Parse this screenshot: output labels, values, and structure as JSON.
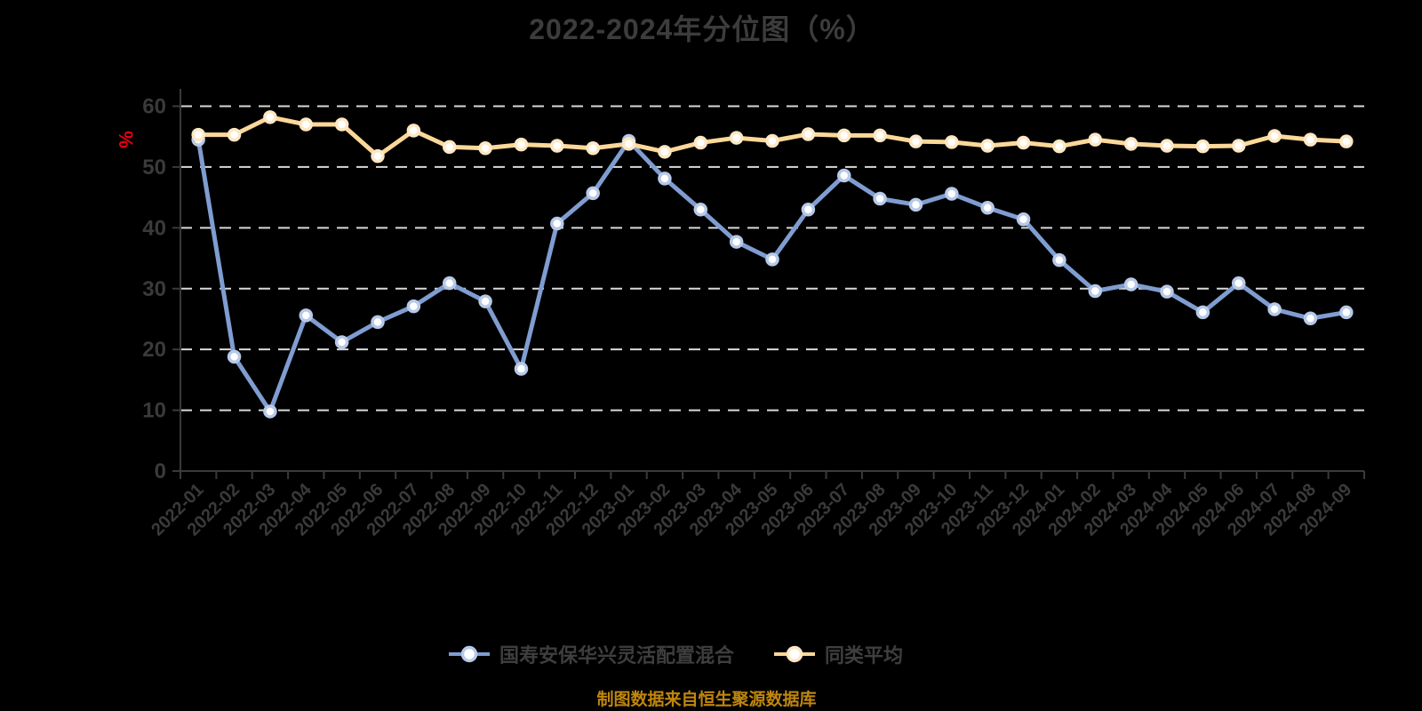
{
  "page": {
    "background": "#000000"
  },
  "chart_data": {
    "type": "line",
    "title": "2022-2024年分位图（%）",
    "title_color": "#3c3c3c",
    "ylabel": "%",
    "ylabel_color": "#e60012",
    "ylim": [
      0,
      60
    ],
    "y_ticks": [
      0,
      10,
      20,
      30,
      40,
      50,
      60
    ],
    "grid": "horizontal dashed gridlines, black background",
    "gridline_color": "#d9d9d9",
    "axis_color": "#3a3a3a",
    "label_color": "#3a3a3a",
    "legend_position": "bottom",
    "legend_text_color": "#3e3e3e",
    "annotation": "制图数据来自恒生聚源数据库",
    "annotation_color": "#bf860e",
    "categories": [
      "2022-01",
      "2022-02",
      "2022-03",
      "2022-04",
      "2022-05",
      "2022-06",
      "2022-07",
      "2022-08",
      "2022-09",
      "2022-10",
      "2022-11",
      "2022-12",
      "2023-01",
      "2023-02",
      "2023-03",
      "2023-04",
      "2023-05",
      "2023-06",
      "2023-07",
      "2023-08",
      "2023-09",
      "2023-10",
      "2023-11",
      "2023-12",
      "2024-01",
      "2024-02",
      "2024-03",
      "2024-04",
      "2024-05",
      "2024-06",
      "2024-07",
      "2024-08",
      "2024-09"
    ],
    "series": [
      {
        "name": "国寿安保华兴灵活配置混合",
        "color": "#7f9dd1",
        "marker_edge": "#b7c9e8",
        "marker_fill": "#ffffff",
        "values": [
          54.5,
          18.8,
          9.8,
          25.6,
          21.2,
          24.5,
          27.1,
          30.9,
          27.9,
          16.8,
          40.7,
          45.7,
          54.3,
          48.1,
          43.0,
          37.7,
          34.8,
          43.0,
          48.6,
          44.8,
          43.8,
          45.6,
          43.3,
          41.4,
          34.7,
          29.6,
          30.7,
          29.5,
          26.1,
          30.9,
          26.6,
          25.1,
          26.1
        ]
      },
      {
        "name": "同类平均",
        "color": "#fbd899",
        "marker_edge": "#fde7c2",
        "marker_fill": "#ffffff",
        "values": [
          55.3,
          55.3,
          58.2,
          57.0,
          57.0,
          51.8,
          56.0,
          53.3,
          53.1,
          53.7,
          53.5,
          53.1,
          53.8,
          52.5,
          54.0,
          54.8,
          54.3,
          55.4,
          55.2,
          55.2,
          54.2,
          54.1,
          53.5,
          54.0,
          53.4,
          54.5,
          53.8,
          53.5,
          53.4,
          53.5,
          55.1,
          54.5,
          54.2
        ]
      }
    ]
  }
}
